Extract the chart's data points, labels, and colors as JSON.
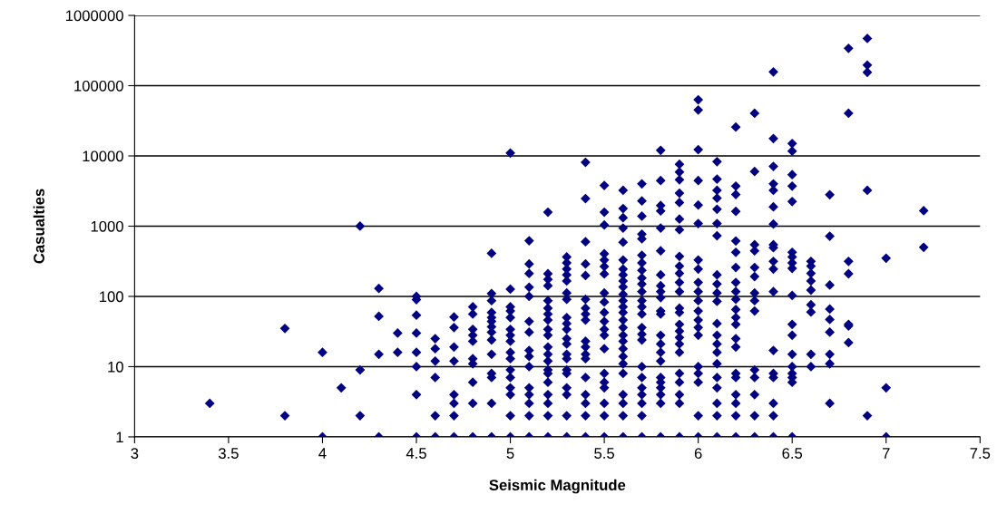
{
  "chart_data": {
    "type": "scatter",
    "xlabel": "Seismic Magnitude",
    "ylabel": "Casualties",
    "xlim": [
      3,
      7.5
    ],
    "xticks": [
      3,
      3.5,
      4,
      4.5,
      5,
      5.5,
      6,
      6.5,
      7,
      7.5
    ],
    "ylim": [
      1,
      1000000
    ],
    "yticks": [
      1,
      10,
      100,
      1000,
      10000,
      100000,
      1000000
    ],
    "log": "y",
    "grid": "y",
    "marker": "diamond",
    "series": [
      {
        "color": "#000080",
        "x": [
          3.4,
          3.8,
          3.8,
          4.0,
          4.0,
          4.1,
          4.2,
          4.2,
          4.2,
          4.3,
          4.3,
          4.3,
          4.3,
          4.4,
          4.4,
          4.5,
          4.5,
          4.5,
          4.5,
          4.5,
          4.5,
          4.5,
          4.5,
          4.6,
          4.6,
          4.6,
          4.6,
          4.6,
          4.6,
          4.7,
          4.7,
          4.7,
          4.7,
          4.7,
          4.7,
          4.7,
          4.7,
          4.8,
          4.8,
          4.8,
          4.8,
          4.8,
          4.8,
          4.8,
          4.8,
          4.8,
          4.8,
          4.9,
          4.9,
          4.9,
          4.9,
          4.9,
          4.9,
          4.9,
          4.9,
          4.9,
          4.9,
          4.9,
          4.9,
          4.9,
          4.9,
          5.0,
          5.0,
          5.0,
          5.0,
          5.0,
          5.0,
          5.0,
          5.0,
          5.0,
          5.0,
          5.0,
          5.0,
          5.0,
          5.0,
          5.0,
          5.0,
          5.1,
          5.1,
          5.1,
          5.1,
          5.1,
          5.1,
          5.1,
          5.1,
          5.1,
          5.1,
          5.1,
          5.1,
          5.1,
          5.1,
          5.1,
          5.2,
          5.2,
          5.2,
          5.2,
          5.2,
          5.2,
          5.2,
          5.2,
          5.2,
          5.2,
          5.2,
          5.2,
          5.2,
          5.2,
          5.2,
          5.2,
          5.2,
          5.2,
          5.2,
          5.2,
          5.3,
          5.3,
          5.3,
          5.3,
          5.3,
          5.3,
          5.3,
          5.3,
          5.3,
          5.3,
          5.3,
          5.3,
          5.3,
          5.3,
          5.3,
          5.3,
          5.3,
          5.3,
          5.3,
          5.3,
          5.4,
          5.4,
          5.4,
          5.4,
          5.4,
          5.4,
          5.4,
          5.4,
          5.4,
          5.4,
          5.4,
          5.4,
          5.4,
          5.4,
          5.4,
          5.4,
          5.4,
          5.4,
          5.5,
          5.5,
          5.5,
          5.5,
          5.5,
          5.5,
          5.5,
          5.5,
          5.5,
          5.5,
          5.5,
          5.5,
          5.5,
          5.5,
          5.5,
          5.5,
          5.5,
          5.5,
          5.5,
          5.5,
          5.6,
          5.6,
          5.6,
          5.6,
          5.6,
          5.6,
          5.6,
          5.6,
          5.6,
          5.6,
          5.6,
          5.6,
          5.6,
          5.6,
          5.6,
          5.6,
          5.6,
          5.6,
          5.6,
          5.6,
          5.6,
          5.6,
          5.6,
          5.6,
          5.6,
          5.6,
          5.7,
          5.7,
          5.7,
          5.7,
          5.7,
          5.7,
          5.7,
          5.7,
          5.7,
          5.7,
          5.7,
          5.7,
          5.7,
          5.7,
          5.7,
          5.7,
          5.7,
          5.7,
          5.7,
          5.7,
          5.7,
          5.7,
          5.7,
          5.7,
          5.8,
          5.8,
          5.8,
          5.8,
          5.8,
          5.8,
          5.8,
          5.8,
          5.8,
          5.8,
          5.8,
          5.8,
          5.8,
          5.8,
          5.8,
          5.8,
          5.8,
          5.8,
          5.8,
          5.8,
          5.8,
          5.8,
          5.9,
          5.9,
          5.9,
          5.9,
          5.9,
          5.9,
          5.9,
          5.9,
          5.9,
          5.9,
          5.9,
          5.9,
          5.9,
          5.9,
          5.9,
          5.9,
          5.9,
          5.9,
          5.9,
          5.9,
          5.9,
          5.9,
          5.9,
          5.9,
          6.0,
          6.0,
          6.0,
          6.0,
          6.0,
          6.0,
          6.0,
          6.0,
          6.0,
          6.0,
          6.0,
          6.0,
          6.0,
          6.0,
          6.0,
          6.0,
          6.0,
          6.0,
          6.0,
          6.0,
          6.1,
          6.1,
          6.1,
          6.1,
          6.1,
          6.1,
          6.1,
          6.1,
          6.1,
          6.1,
          6.1,
          6.1,
          6.1,
          6.1,
          6.1,
          6.1,
          6.1,
          6.1,
          6.1,
          6.1,
          6.1,
          6.2,
          6.2,
          6.2,
          6.2,
          6.2,
          6.2,
          6.2,
          6.2,
          6.2,
          6.2,
          6.2,
          6.2,
          6.2,
          6.2,
          6.2,
          6.2,
          6.2,
          6.2,
          6.2,
          6.2,
          6.2,
          6.3,
          6.3,
          6.3,
          6.3,
          6.3,
          6.3,
          6.3,
          6.3,
          6.3,
          6.3,
          6.3,
          6.3,
          6.3,
          6.3,
          6.4,
          6.4,
          6.4,
          6.4,
          6.4,
          6.4,
          6.4,
          6.4,
          6.4,
          6.4,
          6.4,
          6.4,
          6.4,
          6.4,
          6.4,
          6.4,
          6.4,
          6.4,
          6.5,
          6.5,
          6.5,
          6.5,
          6.5,
          6.5,
          6.5,
          6.5,
          6.5,
          6.5,
          6.5,
          6.5,
          6.5,
          6.5,
          6.5,
          6.5,
          6.5,
          6.5,
          6.6,
          6.6,
          6.6,
          6.6,
          6.6,
          6.6,
          6.6,
          6.6,
          6.6,
          6.7,
          6.7,
          6.7,
          6.7,
          6.7,
          6.7,
          6.7,
          6.7,
          6.7,
          6.8,
          6.8,
          6.8,
          6.8,
          6.8,
          6.8,
          6.8,
          6.9,
          6.9,
          6.9,
          6.9,
          6.9,
          7.0,
          7.0,
          7.0,
          7.2,
          7.2
        ],
        "values": [
          3,
          35,
          2,
          16,
          1,
          5,
          1000,
          9,
          2,
          130,
          52,
          15,
          1,
          30,
          16,
          100,
          90,
          54,
          30,
          16,
          10,
          4,
          1,
          25,
          18,
          12,
          7,
          2,
          1,
          51,
          36,
          19,
          12,
          4,
          3,
          2,
          1,
          71,
          56,
          34,
          28,
          23,
          13,
          11,
          6,
          3,
          1,
          410,
          110,
          87,
          59,
          50,
          44,
          37,
          31,
          24,
          15,
          8,
          7,
          3,
          1,
          11000,
          127,
          71,
          62,
          50,
          34,
          28,
          23,
          16,
          13,
          9,
          7,
          5,
          4,
          2,
          1,
          620,
          290,
          212,
          135,
          100,
          44,
          31,
          17,
          14,
          10,
          5,
          4,
          3,
          2,
          1,
          1580,
          210,
          175,
          142,
          87,
          68,
          56,
          46,
          34,
          28,
          19,
          15,
          12,
          9,
          8,
          6,
          4,
          3,
          2,
          1,
          365,
          300,
          245,
          203,
          166,
          112,
          91,
          50,
          41,
          34,
          25,
          21,
          15,
          13,
          9,
          8,
          5,
          4,
          2,
          1,
          8100,
          2470,
          600,
          290,
          198,
          91,
          68,
          56,
          46,
          23,
          19,
          15,
          13,
          7,
          4,
          3,
          2,
          1,
          3800,
          1580,
          1040,
          405,
          330,
          267,
          209,
          112,
          83,
          59,
          44,
          34,
          28,
          18,
          8,
          6,
          5,
          3,
          2,
          1,
          3240,
          1780,
          1320,
          940,
          590,
          330,
          245,
          203,
          166,
          136,
          107,
          87,
          71,
          59,
          46,
          36,
          28,
          23,
          18,
          14,
          11,
          8,
          4,
          3,
          2,
          1,
          4000,
          2280,
          1390,
          770,
          660,
          385,
          300,
          235,
          183,
          150,
          117,
          87,
          71,
          56,
          36,
          29,
          24,
          10,
          7,
          5,
          4,
          3,
          2,
          1,
          12000,
          4460,
          1970,
          1650,
          940,
          445,
          203,
          142,
          117,
          96,
          62,
          56,
          28,
          21,
          16,
          12,
          7,
          6,
          5,
          4,
          3,
          1,
          7600,
          5900,
          4570,
          2950,
          2170,
          1260,
          890,
          372,
          270,
          213,
          158,
          117,
          68,
          59,
          40,
          32,
          26,
          21,
          16,
          8,
          6,
          4,
          3,
          1,
          63000,
          45000,
          12300,
          4460,
          2000,
          1090,
          330,
          245,
          158,
          117,
          87,
          62,
          46,
          36,
          28,
          10,
          8,
          6,
          2,
          1,
          8300,
          4670,
          3240,
          2510,
          1740,
          1090,
          730,
          203,
          150,
          112,
          85,
          41,
          28,
          21,
          16,
          11,
          7,
          5,
          3,
          2,
          1,
          25700,
          3720,
          2820,
          1620,
          615,
          425,
          258,
          158,
          117,
          91,
          65,
          50,
          40,
          25,
          19,
          8,
          7,
          4,
          3,
          2,
          1,
          40500,
          6000,
          545,
          445,
          258,
          192,
          112,
          87,
          62,
          9,
          7,
          4,
          2,
          1,
          157000,
          17700,
          7100,
          4000,
          3240,
          1880,
          1070,
          545,
          495,
          315,
          245,
          117,
          17,
          8,
          7,
          3,
          2,
          1,
          15000,
          11700,
          5400,
          3720,
          2240,
          425,
          365,
          300,
          251,
          103,
          40,
          28,
          15,
          10,
          8,
          7,
          6,
          1,
          315,
          270,
          213,
          166,
          123,
          76,
          60,
          15,
          10,
          2800,
          720,
          145,
          66,
          47,
          31,
          15,
          11,
          3,
          340000,
          40500,
          315,
          210,
          40,
          38,
          22,
          470000,
          196000,
          155000,
          3240,
          2,
          350,
          5,
          1,
          1660,
          500
        ]
      }
    ]
  }
}
